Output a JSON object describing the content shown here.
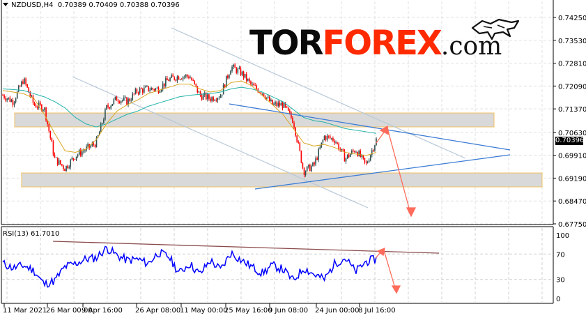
{
  "header": {
    "symbol": "NZDUSD,H4",
    "ohlc": "0.70389 0.70409 0.70388 0.70396"
  },
  "logo": {
    "part1": "TOR",
    "part2": "FOREX",
    "part3": ".com",
    "icon": "bull-icon"
  },
  "current_price": "0.70396",
  "rsi": {
    "label": "RSI(13) 61.7010",
    "levels": [
      "100",
      "70",
      "30",
      "0"
    ]
  },
  "colors": {
    "bull_candle": "#2f4f4f",
    "bear_candle": "#ff0000",
    "ma_fast": "#daa520",
    "ma_slow": "#20b2aa",
    "rsi_line": "#0000ff",
    "trendline_blue": "#3a7bd5",
    "channel_line": "#b0c4d8",
    "zone_fill": "#d3d3d3",
    "zone_border": "#f0c060",
    "forecast_arrow": "#ff6b5b",
    "rsi_trendline": "#8b4b4b"
  },
  "chart_data": [
    {
      "type": "line",
      "title": "NZDUSD,H4",
      "subtitle": "0.70389 0.70409 0.70388 0.70396",
      "xlabel": "",
      "ylabel": "",
      "x_ticks": [
        "11 Mar 2021",
        "26 Mar 00:00",
        "9 Apr 16:00",
        "26 Apr 08:00",
        "11 May 00:00",
        "25 May 16:00",
        "9 Jun 08:00",
        "24 Jun 00:00",
        "8 Jul 16:00"
      ],
      "y_ticks": [
        "0.74250",
        "0.73530",
        "0.72810",
        "0.72090",
        "0.71370",
        "0.70630",
        "0.69910",
        "0.69190",
        "0.68470",
        "0.67750"
      ],
      "ylim": [
        0.6775,
        0.746
      ],
      "grid": true,
      "last_price": 0.70396,
      "series": [
        {
          "name": "NZDUSD close (approx)",
          "x": [
            "11 Mar",
            "14 Mar",
            "17 Mar",
            "19 Mar",
            "22 Mar",
            "26 Mar",
            "30 Mar",
            "2 Apr",
            "6 Apr",
            "9 Apr",
            "13 Apr",
            "16 Apr",
            "20 Apr",
            "23 Apr",
            "26 Apr",
            "29 Apr",
            "3 May",
            "6 May",
            "11 May",
            "14 May",
            "18 May",
            "21 May",
            "25 May",
            "28 May",
            "1 Jun",
            "4 Jun",
            "9 Jun",
            "11 Jun",
            "15 Jun",
            "18 Jun",
            "21 Jun",
            "24 Jun",
            "28 Jun",
            "1 Jul",
            "6 Jul",
            "8 Jul",
            "12 Jul"
          ],
          "values": [
            0.718,
            0.716,
            0.723,
            0.715,
            0.714,
            0.698,
            0.695,
            0.699,
            0.701,
            0.703,
            0.714,
            0.717,
            0.716,
            0.7195,
            0.72,
            0.72,
            0.723,
            0.724,
            0.724,
            0.718,
            0.717,
            0.718,
            0.727,
            0.725,
            0.721,
            0.719,
            0.715,
            0.715,
            0.71,
            0.694,
            0.696,
            0.705,
            0.704,
            0.698,
            0.701,
            0.696,
            0.704
          ]
        },
        {
          "name": "MA fast (gold)",
          "values": [
            0.7195,
            0.719,
            0.7185,
            0.717,
            0.712,
            0.706,
            0.7005,
            0.7,
            0.701,
            0.704,
            0.709,
            0.713,
            0.715,
            0.7165,
            0.7185,
            0.7195,
            0.7205,
            0.7215,
            0.7215,
            0.72,
            0.719,
            0.7195,
            0.722,
            0.7225,
            0.721,
            0.718,
            0.715,
            0.712,
            0.7075,
            0.703,
            0.702,
            0.7025,
            0.7015,
            0.7,
            0.6995,
            0.699,
            0.7
          ]
        },
        {
          "name": "MA slow (teal)",
          "values": [
            0.72,
            0.7198,
            0.7195,
            0.7185,
            0.7175,
            0.716,
            0.714,
            0.711,
            0.709,
            0.708,
            0.709,
            0.7105,
            0.712,
            0.713,
            0.7145,
            0.7155,
            0.7165,
            0.7175,
            0.718,
            0.7183,
            0.7185,
            0.719,
            0.72,
            0.7205,
            0.72,
            0.719,
            0.7175,
            0.716,
            0.7135,
            0.711,
            0.71,
            0.7095,
            0.7085,
            0.7075,
            0.707,
            0.7065,
            0.706
          ]
        }
      ],
      "annotations": [
        {
          "type": "zone",
          "label": "resistance zone",
          "y_range": [
            0.709,
            0.712
          ]
        },
        {
          "type": "zone",
          "label": "support zone",
          "y_range": [
            0.6895,
            0.693
          ]
        },
        {
          "type": "trendline",
          "label": "descending resistance (blue)"
        },
        {
          "type": "trendline",
          "label": "ascending support (blue)"
        },
        {
          "type": "channel",
          "label": "descending channel (light blue)"
        },
        {
          "type": "arrow",
          "label": "forecast up to ~0.7070 then down to ~0.6830"
        }
      ]
    },
    {
      "type": "line",
      "title": "RSI(13) 61.7010",
      "ylim": [
        0,
        100
      ],
      "y_ticks": [
        "100",
        "70",
        "30",
        "0"
      ],
      "grid": true,
      "series": [
        {
          "name": "RSI(13)",
          "values": [
            55,
            48,
            52,
            44,
            22,
            28,
            50,
            55,
            62,
            64,
            80,
            68,
            60,
            62,
            55,
            72,
            66,
            40,
            55,
            38,
            60,
            45,
            72,
            60,
            50,
            40,
            52,
            46,
            28,
            48,
            38,
            30,
            55,
            64,
            42,
            58,
            62
          ]
        }
      ],
      "current_value": 61.701,
      "annotations": [
        {
          "type": "trendline",
          "label": "descending RSI resistance"
        },
        {
          "type": "arrow",
          "label": "forecast down"
        }
      ]
    }
  ]
}
